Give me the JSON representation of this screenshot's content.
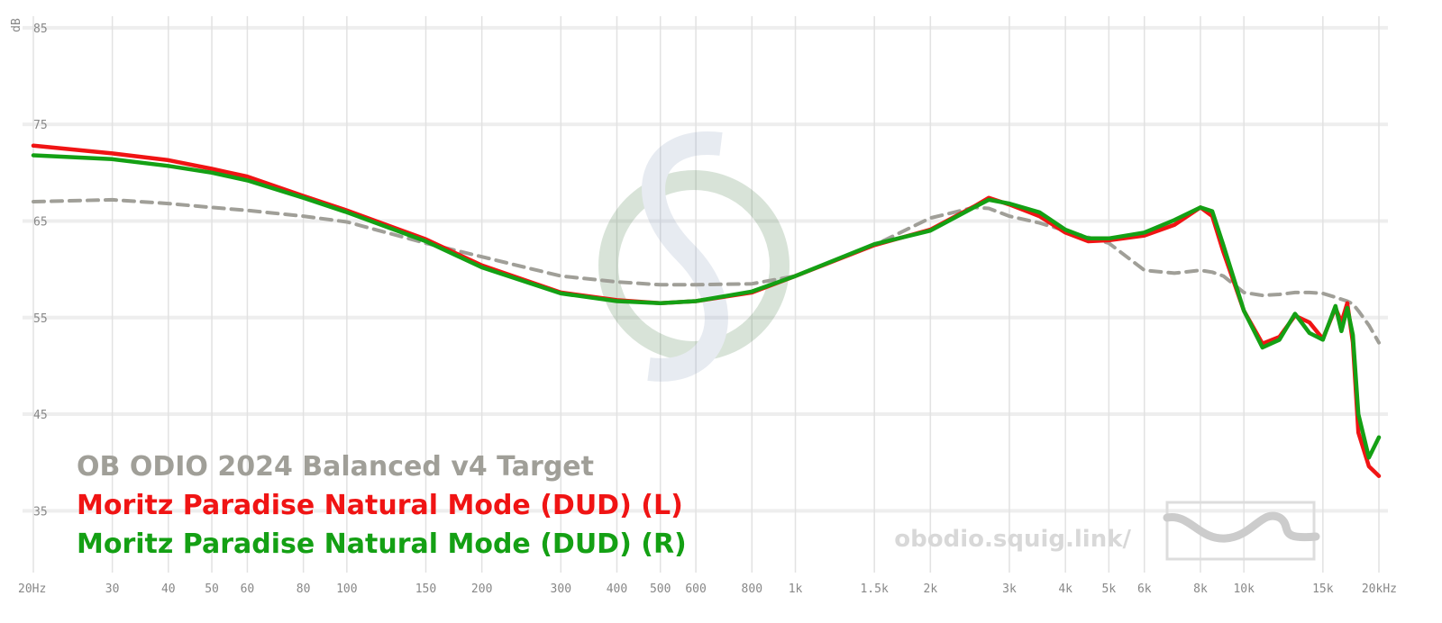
{
  "chart_data": {
    "type": "line",
    "ylabel": "dB",
    "watermark": "obodio.squig.link/",
    "xscale": "log",
    "grid": true,
    "legend": "lower left",
    "xlim": [
      20,
      20000
    ],
    "ylim": [
      28.6,
      86.2
    ],
    "yticks": [
      35,
      45,
      55,
      65,
      75,
      85
    ],
    "xticks": [
      {
        "value": 20,
        "label": "20Hz"
      },
      30,
      40,
      50,
      60,
      80,
      100,
      150,
      200,
      300,
      400,
      500,
      600,
      800,
      {
        "value": 1000,
        "label": "1k"
      },
      {
        "value": 1500,
        "label": "1.5k"
      },
      {
        "value": 2000,
        "label": "2k"
      },
      {
        "value": 3000,
        "label": "3k"
      },
      {
        "value": 4000,
        "label": "4k"
      },
      {
        "value": 5000,
        "label": "5k"
      },
      {
        "value": 6000,
        "label": "6k"
      },
      {
        "value": 8000,
        "label": "8k"
      },
      {
        "value": 10000,
        "label": "10k"
      },
      {
        "value": 15000,
        "label": "15k"
      },
      {
        "value": 20000,
        "label": "20kHz"
      }
    ],
    "x": [
      20,
      30,
      40,
      50,
      60,
      80,
      100,
      150,
      200,
      300,
      400,
      500,
      600,
      800,
      1000,
      1500,
      2000,
      2500,
      2700,
      3000,
      3500,
      4000,
      4500,
      5000,
      6000,
      7000,
      8000,
      8500,
      9000,
      10000,
      11000,
      12000,
      13000,
      14000,
      15000,
      16000,
      16500,
      17000,
      17500,
      18000,
      19000,
      20000
    ],
    "series": [
      {
        "name": "OB ODIO 2024 Balanced v4 Target",
        "color": "#a09f98",
        "dashed": true,
        "values": [
          67.0,
          67.2,
          66.8,
          66.4,
          66.1,
          65.5,
          64.9,
          62.7,
          61.3,
          59.3,
          58.7,
          58.4,
          58.4,
          58.5,
          59.3,
          62.5,
          65.3,
          66.4,
          66.3,
          65.5,
          64.8,
          64.0,
          63.3,
          62.7,
          59.9,
          59.6,
          59.9,
          59.7,
          59.3,
          57.6,
          57.3,
          57.4,
          57.6,
          57.6,
          57.5,
          57.1,
          56.9,
          56.7,
          56.4,
          55.7,
          54.2,
          52.4
        ]
      },
      {
        "name": "Moritz Paradise Natural Mode (DUD) (L)",
        "color": "#f01414",
        "values": [
          72.8,
          72.0,
          71.3,
          70.4,
          69.6,
          67.6,
          66.1,
          63.1,
          60.4,
          57.6,
          56.8,
          56.5,
          56.7,
          57.6,
          59.3,
          62.5,
          64.1,
          66.5,
          67.4,
          66.7,
          65.5,
          63.8,
          62.9,
          63.0,
          63.5,
          64.6,
          66.4,
          65.5,
          61.8,
          55.7,
          52.3,
          53.0,
          55.2,
          54.5,
          52.8,
          56.0,
          54.5,
          56.5,
          52.4,
          43.1,
          39.6,
          38.6
        ]
      },
      {
        "name": "Moritz Paradise Natural Mode (DUD) (R)",
        "color": "#14a014",
        "values": [
          71.8,
          71.4,
          70.7,
          70.0,
          69.2,
          67.4,
          65.9,
          62.9,
          60.2,
          57.5,
          56.7,
          56.5,
          56.7,
          57.7,
          59.3,
          62.6,
          64.0,
          66.4,
          67.2,
          66.8,
          65.9,
          64.1,
          63.2,
          63.2,
          63.8,
          65.1,
          66.4,
          66.0,
          62.5,
          55.7,
          51.9,
          52.7,
          55.4,
          53.4,
          52.7,
          56.2,
          53.6,
          56.0,
          53.2,
          45.0,
          40.5,
          42.6
        ]
      }
    ]
  }
}
